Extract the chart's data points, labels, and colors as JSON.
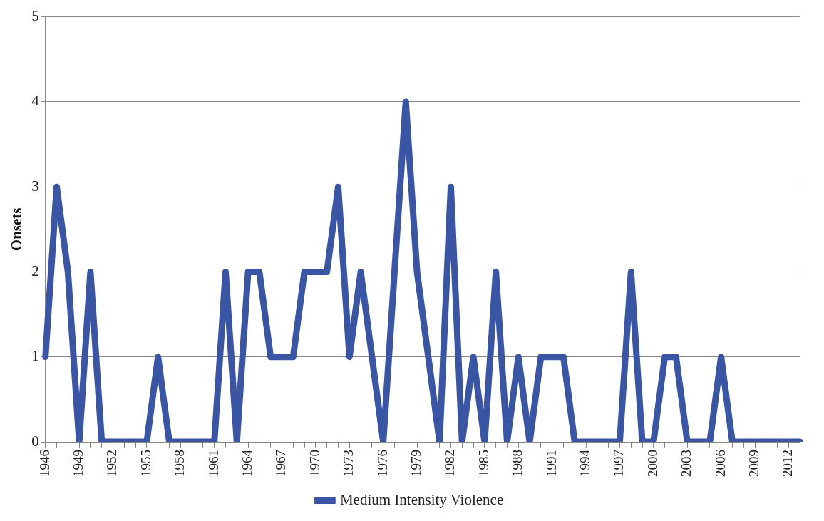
{
  "chart_data": {
    "type": "line",
    "ylabel": "Onsets",
    "categories": [
      "1946",
      null,
      null,
      "1949",
      null,
      null,
      "1952",
      null,
      null,
      "1955",
      null,
      null,
      "1958",
      null,
      null,
      "1961",
      null,
      null,
      "1964",
      null,
      null,
      "1967",
      null,
      null,
      "1970",
      null,
      null,
      "1973",
      null,
      null,
      "1976",
      null,
      null,
      "1979",
      null,
      null,
      "1982",
      null,
      null,
      "1985",
      null,
      null,
      "1988",
      null,
      null,
      "1991",
      null,
      null,
      "1994",
      null,
      null,
      "1997",
      null,
      null,
      "2000",
      null,
      null,
      "2003",
      null,
      null,
      "2006",
      null,
      null,
      "2009",
      null,
      null,
      "2012",
      null
    ],
    "series": [
      {
        "name": "Medium Intensity Violence",
        "color": "#3a55a4",
        "values": [
          1,
          3,
          2,
          0,
          2,
          0,
          0,
          0,
          0,
          0,
          1,
          0,
          0,
          0,
          0,
          0,
          2,
          0,
          2,
          2,
          1,
          1,
          1,
          2,
          2,
          2,
          3,
          1,
          2,
          1,
          0,
          2,
          4,
          2,
          1,
          0,
          3,
          0,
          1,
          0,
          2,
          0,
          1,
          0,
          1,
          1,
          1,
          0,
          0,
          0,
          0,
          0,
          2,
          0,
          0,
          1,
          1,
          0,
          0,
          0,
          1,
          0,
          0,
          0,
          0,
          0,
          0,
          0
        ]
      }
    ],
    "ylim": [
      0,
      5
    ],
    "yticks": [
      0,
      1,
      2,
      3,
      4,
      5
    ],
    "grid": "y",
    "legend": "bottom",
    "marker": "none",
    "line_style": "solid"
  }
}
